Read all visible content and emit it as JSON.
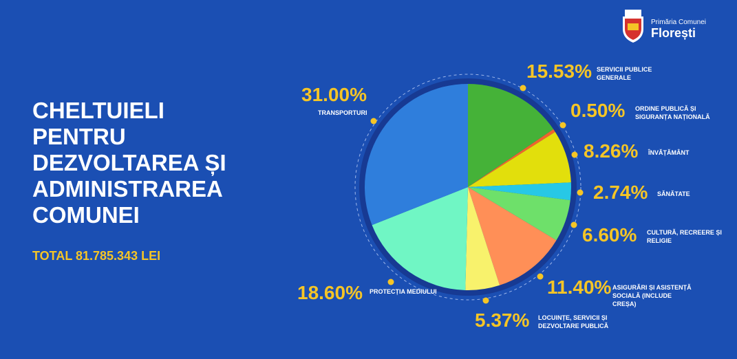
{
  "chart_data": {
    "type": "pie",
    "title": "CHELTUIELI PENTRU DEZVOLTAREA ȘI ADMINISTRAREA COMUNEI",
    "subtitle": "TOTAL 81.785.343 LEI",
    "logo_caption": "Primăria Comunei",
    "logo_name": "Florești",
    "categories": [
      "SERVICII PUBLICE GENERALE",
      "ORDINE PUBLICĂ ȘI SIGURANȚA NAȚIONALĂ",
      "ÎNVĂȚĂMÂNT",
      "SĂNĂTATE",
      "CULTURĂ, RECREERE ȘI RELIGIE",
      "ASIGURĂRI ȘI ASISTENȚĂ SOCIALĂ (INCLUDE CREȘA)",
      "LOCUINȚE, SERVICII ȘI DEZVOLTARE PUBLICĂ",
      "PROTECȚIA MEDIULUI",
      "TRANSPORTURI"
    ],
    "values": [
      15.53,
      0.5,
      8.26,
      2.74,
      6.6,
      11.4,
      5.37,
      18.6,
      31.0
    ],
    "value_labels": [
      "15.53%",
      "0.50%",
      "8.26%",
      "2.74%",
      "6.60%",
      "11.40%",
      "5.37%",
      "18.60%",
      "31.00%"
    ],
    "colors": [
      "#45b238",
      "#f0642d",
      "#e2df0c",
      "#27c8e6",
      "#6ee06a",
      "#ff8f57",
      "#f8f26c",
      "#70f6c4",
      "#2f7edc"
    ]
  }
}
